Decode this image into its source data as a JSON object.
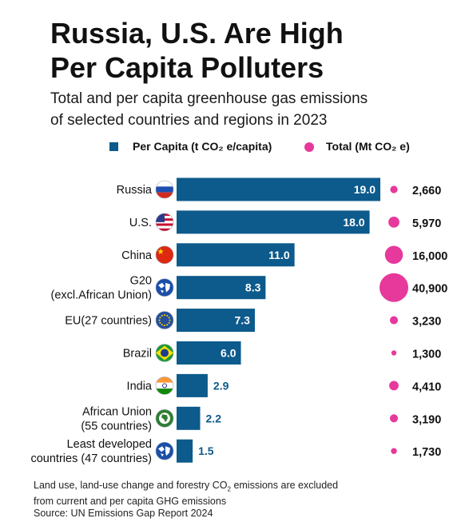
{
  "title": "Russia, U.S. Are High\nPer Capita Polluters",
  "subtitle": "Total and per capita greenhouse gas emissions\nof selected countries and regions in 2023",
  "legend": {
    "per_capita": "Per Capita  (t CO₂ e/capita)",
    "total": "Total  (Mt CO₂ e)"
  },
  "colors": {
    "bar": "#0d5a8c",
    "bubble": "#e6399b",
    "label_outside": "#0d5a8c",
    "label_inside": "#ffffff"
  },
  "chart_data": {
    "type": "bar",
    "orientation": "horizontal",
    "categories": [
      [
        "Russia"
      ],
      [
        "U.S."
      ],
      [
        "China"
      ],
      [
        "G20",
        "(excl.African Union)"
      ],
      [
        "EU(27 countries)"
      ],
      [
        "Brazil"
      ],
      [
        "India"
      ],
      [
        "African Union",
        "(55 countries)"
      ],
      [
        "Least developed",
        "countries (47 countries)"
      ]
    ],
    "flag_icons": [
      "russia-flag-icon",
      "us-flag-icon",
      "china-flag-icon",
      "globe-icon",
      "eu-flag-icon",
      "brazil-flag-icon",
      "india-flag-icon",
      "african-union-icon",
      "globe-icon"
    ],
    "series": [
      {
        "name": "Per Capita  (t CO₂ e/capita)",
        "values": [
          19.0,
          18.0,
          11.0,
          8.3,
          7.3,
          6.0,
          2.9,
          2.2,
          1.5
        ],
        "labels": [
          "19.0",
          "18.0",
          "11.0",
          "8.3",
          "7.3",
          "6.0",
          "2.9",
          "2.2",
          "1.5"
        ]
      },
      {
        "name": "Total  (Mt CO₂ e)",
        "values": [
          2660,
          5970,
          16000,
          40900,
          3230,
          1300,
          4410,
          3190,
          1730
        ],
        "labels": [
          "2,660",
          "5,970",
          "16,000",
          "40,900",
          "3,230",
          "1,300",
          "4,410",
          "3,190",
          "1,730"
        ]
      }
    ],
    "xlim": [
      0,
      19.0
    ]
  },
  "note": {
    "line1_pre": "Land use, land-use change and forestry CO",
    "line1_sub": "2",
    "line1_post": " emissions are excluded",
    "line2": "from current and per capita GHG emissions",
    "source": "Source: UN Emissions Gap Report 2024"
  }
}
